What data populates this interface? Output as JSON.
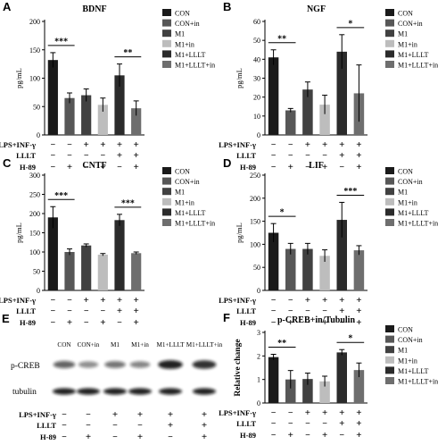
{
  "figure": {
    "legend_labels": [
      "CON",
      "CON+in",
      "M1",
      "M1+in",
      "M1+LLLT",
      "M1+LLLT+in"
    ],
    "condition_labels": [
      "LPS+INF-γ",
      "LLLT",
      "H-89"
    ],
    "condition_matrix": [
      [
        "−",
        "−",
        "+",
        "+",
        "+",
        "+"
      ],
      [
        "−",
        "−",
        "−",
        "−",
        "+",
        "+"
      ],
      [
        "−",
        "+",
        "−",
        "+",
        "−",
        "+"
      ]
    ],
    "colors": [
      "#1a1a1a",
      "#575757",
      "#414141",
      "#bdbdbd",
      "#2b2b2b",
      "#6e6e6e"
    ],
    "blot": {
      "letter": "E",
      "lane_labels": [
        "CON",
        "CON+in",
        "M1",
        "M1+in",
        "M1+LLLT",
        "M1+LLLT+in"
      ],
      "row_labels": [
        "p-CREB",
        "tubulin"
      ],
      "pcreb_intensity": [
        0.55,
        0.3,
        0.45,
        0.35,
        0.95,
        0.85
      ],
      "tubulin_intensity": [
        0.95,
        0.95,
        0.95,
        0.95,
        0.95,
        0.95
      ]
    }
  },
  "chart_data": [
    {
      "letter": "A",
      "type": "bar",
      "title": "BDNF",
      "ylabel": "pg/mL",
      "ylim": [
        0,
        200
      ],
      "yticks": [
        0,
        50,
        100,
        150,
        200
      ],
      "categories": [
        "CON",
        "CON+in",
        "M1",
        "M1+in",
        "M1+LLLT",
        "M1+LLLT+in"
      ],
      "values": [
        132,
        65,
        70,
        53,
        105,
        47
      ],
      "errors": [
        13,
        9,
        11,
        12,
        20,
        13
      ],
      "significance": [
        {
          "from": 0,
          "to": 1,
          "label": "***"
        },
        {
          "from": 4,
          "to": 5,
          "label": "**"
        }
      ]
    },
    {
      "letter": "B",
      "type": "bar",
      "title": "NGF",
      "ylabel": "pg/mL",
      "ylim": [
        0,
        60
      ],
      "yticks": [
        0,
        10,
        20,
        30,
        40,
        50,
        60
      ],
      "categories": [
        "CON",
        "CON+in",
        "M1",
        "M1+in",
        "M1+LLLT",
        "M1+LLLT+in"
      ],
      "values": [
        41,
        13,
        24,
        16,
        44,
        22
      ],
      "errors": [
        4,
        1,
        4,
        5,
        9,
        15
      ],
      "significance": [
        {
          "from": 0,
          "to": 1,
          "label": "**"
        },
        {
          "from": 4,
          "to": 5,
          "label": "*"
        }
      ]
    },
    {
      "letter": "C",
      "type": "bar",
      "title": "CNTF",
      "ylabel": "pg/mL",
      "ylim": [
        0,
        300
      ],
      "yticks": [
        0,
        50,
        100,
        150,
        200,
        250,
        300
      ],
      "categories": [
        "CON",
        "CON+in",
        "M1",
        "M1+in",
        "M1+LLLT",
        "M1+LLLT+in"
      ],
      "values": [
        190,
        100,
        117,
        93,
        183,
        97
      ],
      "errors": [
        28,
        8,
        4,
        3,
        15,
        3
      ],
      "significance": [
        {
          "from": 0,
          "to": 1,
          "label": "***"
        },
        {
          "from": 4,
          "to": 5,
          "label": "***"
        }
      ]
    },
    {
      "letter": "D",
      "type": "bar",
      "title": "LIF",
      "ylabel": "pg/mL",
      "ylim": [
        0,
        250
      ],
      "yticks": [
        0,
        50,
        100,
        150,
        200,
        250
      ],
      "categories": [
        "CON",
        "CON+in",
        "M1",
        "M1+in",
        "M1+LLLT",
        "M1+LLLT+in"
      ],
      "values": [
        125,
        90,
        90,
        75,
        153,
        87
      ],
      "errors": [
        20,
        12,
        12,
        13,
        38,
        10
      ],
      "significance": [
        {
          "from": 0,
          "to": 1,
          "label": "*"
        },
        {
          "from": 4,
          "to": 5,
          "label": "***"
        }
      ]
    },
    {
      "letter": "F",
      "type": "bar",
      "title": "p-CREB+in/Tubulin",
      "ylabel": "Relative change",
      "ylim": [
        0,
        3
      ],
      "yticks": [
        0,
        1,
        2,
        3
      ],
      "categories": [
        "CON",
        "CON+in",
        "M1",
        "M1+in",
        "M1+LLLT",
        "M1+LLLT+in"
      ],
      "values": [
        1.95,
        1.0,
        1.02,
        0.92,
        2.15,
        1.4
      ],
      "errors": [
        0.12,
        0.38,
        0.25,
        0.22,
        0.12,
        0.3
      ],
      "significance": [
        {
          "from": 0,
          "to": 1,
          "label": "**"
        },
        {
          "from": 4,
          "to": 5,
          "label": "*"
        }
      ]
    }
  ]
}
